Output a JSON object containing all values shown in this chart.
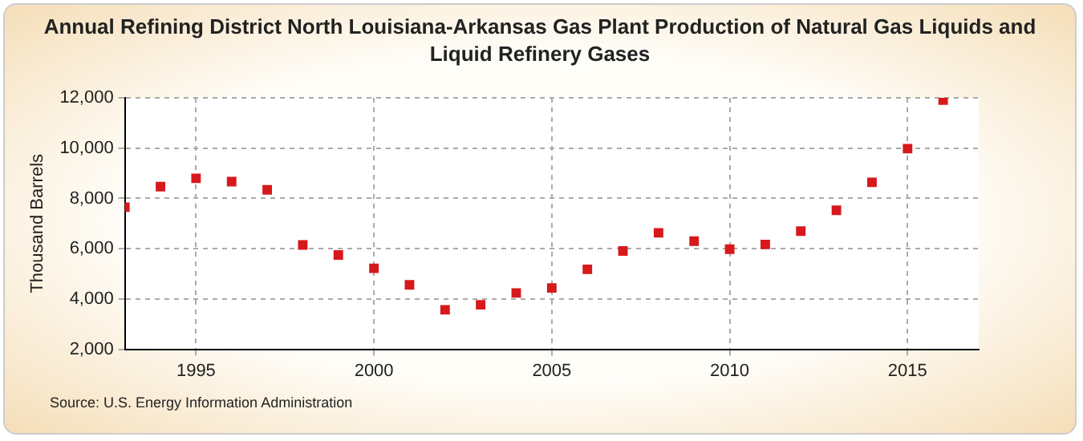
{
  "chart_data": {
    "type": "scatter",
    "title": "Annual Refining District North Louisiana-Arkansas Gas Plant Production of Natural Gas Liquids and Liquid Refinery Gases",
    "ylabel": "Thousand Barrels",
    "annotations": [
      "Source: U.S. Energy Information Administration"
    ],
    "x": [
      1993,
      1994,
      1995,
      1996,
      1997,
      1998,
      1999,
      2000,
      2001,
      2002,
      2003,
      2004,
      2005,
      2006,
      2007,
      2008,
      2009,
      2010,
      2011,
      2012,
      2013,
      2014,
      2015,
      2016
    ],
    "series": [
      {
        "color": "#d7191c",
        "values": [
          7650,
          8470,
          8800,
          8670,
          8340,
          6150,
          5750,
          5220,
          4560,
          3570,
          3770,
          4240,
          4440,
          5180,
          5910,
          6630,
          6300,
          5980,
          6170,
          6700,
          7530,
          8640,
          9980,
          11910
        ]
      }
    ],
    "xlim": [
      1993,
      2017
    ],
    "xticks": [
      1995,
      2000,
      2005,
      2010,
      2015
    ],
    "ylim": [
      2000,
      12000
    ],
    "yticks": [
      {
        "value": 2000,
        "label": "2,000"
      },
      {
        "value": 4000,
        "label": "4,000"
      },
      {
        "value": 6000,
        "label": "6,000"
      },
      {
        "value": 8000,
        "label": "8,000"
      },
      {
        "value": 10000,
        "label": "10,000"
      },
      {
        "value": 12000,
        "label": "12,000"
      }
    ],
    "grid": true,
    "legend": false,
    "marker": "square"
  }
}
